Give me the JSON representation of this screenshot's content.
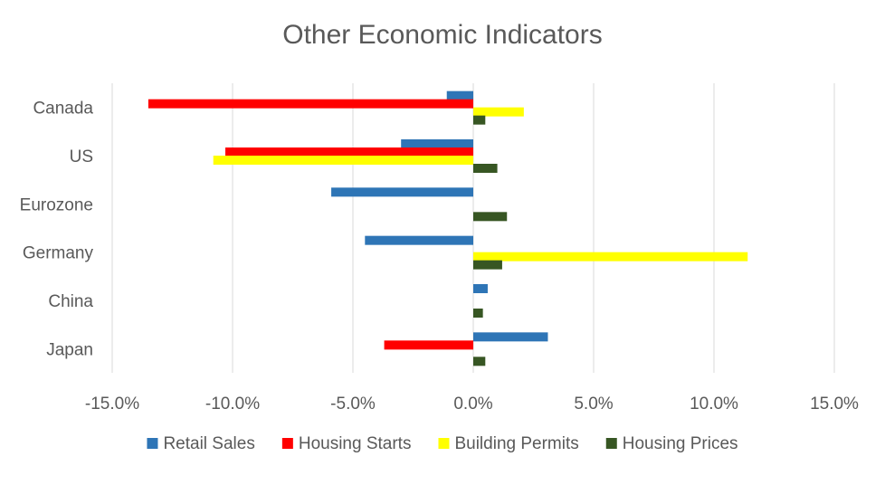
{
  "chart_data": {
    "type": "bar",
    "orientation": "horizontal",
    "title": "Other Economic Indicators",
    "xlabel": "",
    "ylabel": "",
    "categories": [
      "Canada",
      "US",
      "Eurozone",
      "Germany",
      "China",
      "Japan"
    ],
    "xlim": [
      -0.15,
      0.15
    ],
    "xticks": [
      -0.15,
      -0.1,
      -0.05,
      0.0,
      0.05,
      0.1,
      0.15
    ],
    "xtick_labels": [
      "-15.0%",
      "-10.0%",
      "-5.0%",
      "0.0%",
      "5.0%",
      "10.0%",
      "15.0%"
    ],
    "grid": true,
    "legend_position": "bottom",
    "series": [
      {
        "name": "Retail Sales",
        "color": "#2E75B6",
        "values": [
          -0.011,
          -0.03,
          -0.059,
          -0.045,
          0.006,
          0.031
        ]
      },
      {
        "name": "Housing Starts",
        "color": "#FF0000",
        "values": [
          -0.135,
          -0.103,
          null,
          null,
          null,
          -0.037
        ]
      },
      {
        "name": "Building Permits",
        "color": "#FFFF00",
        "values": [
          0.021,
          -0.108,
          null,
          0.114,
          null,
          null
        ]
      },
      {
        "name": "Housing Prices",
        "color": "#375623",
        "values": [
          0.005,
          0.01,
          0.014,
          0.012,
          0.004,
          0.005
        ]
      }
    ]
  }
}
